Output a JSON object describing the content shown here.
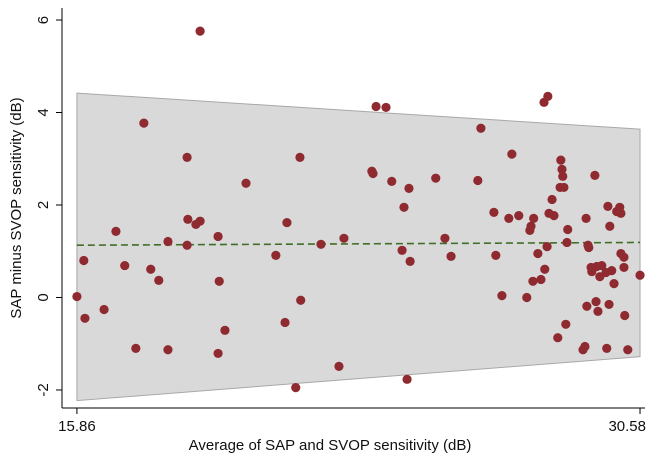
{
  "chart_data": {
    "type": "scatter",
    "xlabel": "Average of SAP and SVOP sensitivity (dB)",
    "ylabel": "SAP minus SVOP sensitivity (dB)",
    "xlim": [
      15.47,
      30.71
    ],
    "ylim": [
      -2.39,
      6.26
    ],
    "xticks": [
      15.86,
      30.58
    ],
    "yticks": [
      -2,
      0,
      2,
      4,
      6
    ],
    "color": "#8e2a30",
    "x": [
      15.86,
      16.04,
      16.07,
      16.57,
      16.88,
      17.11,
      17.4,
      17.61,
      17.79,
      18.0,
      18.24,
      18.24,
      18.74,
      18.74,
      18.76,
      18.97,
      19.08,
      19.08,
      19.55,
      19.58,
      19.55,
      19.73,
      20.28,
      21.06,
      21.3,
      21.35,
      21.58,
      21.69,
      21.71,
      22.24,
      22.71,
      22.84,
      23.57,
      23.6,
      23.68,
      23.94,
      24.09,
      24.41,
      24.36,
      24.54,
      24.57,
      24.49,
      25.24,
      25.48,
      25.64,
      26.34,
      26.42,
      26.76,
      26.81,
      26.97,
      27.15,
      27.23,
      27.41,
      27.62,
      27.7,
      27.73,
      27.78,
      27.8,
      27.91,
      27.99,
      28.09,
      28.07,
      28.17,
      28.15,
      28.2,
      28.28,
      28.33,
      28.43,
      28.49,
      28.51,
      28.54,
      28.56,
      28.59,
      28.64,
      28.69,
      28.67,
      29.14,
      29.09,
      29.17,
      29.19,
      29.22,
      29.24,
      29.3,
      29.32,
      29.4,
      29.43,
      29.45,
      29.48,
      29.53,
      29.58,
      29.69,
      29.71,
      29.74,
      29.77,
      29.79,
      29.84,
      29.9,
      29.97,
      30.05,
      30.08,
      30.08,
      30.16,
      30.16,
      30.18,
      30.26,
      30.58
    ],
    "values": [
      0.02,
      0.8,
      -0.45,
      -0.26,
      1.43,
      0.69,
      -1.1,
      3.77,
      0.61,
      0.37,
      -1.13,
      1.21,
      3.03,
      1.13,
      1.69,
      1.58,
      1.65,
      5.76,
      1.32,
      0.35,
      -1.21,
      -0.71,
      2.47,
      0.91,
      -0.54,
      1.62,
      -1.95,
      3.03,
      -0.06,
      1.15,
      -1.49,
      1.28,
      2.73,
      2.68,
      4.13,
      4.11,
      2.51,
      1.95,
      1.02,
      2.36,
      0.78,
      -1.77,
      2.58,
      1.28,
      0.89,
      2.53,
      3.66,
      1.84,
      0.91,
      0.04,
      1.71,
      3.1,
      1.77,
      0.0,
      1.45,
      1.54,
      0.35,
      1.71,
      0.95,
      0.39,
      0.61,
      4.22,
      4.35,
      1.1,
      1.82,
      2.12,
      1.77,
      -0.87,
      2.38,
      2.97,
      2.77,
      2.62,
      2.38,
      -0.58,
      1.47,
      1.19,
      -1.06,
      -1.13,
      1.71,
      -0.19,
      1.13,
      1.08,
      0.65,
      0.56,
      2.64,
      -0.09,
      0.67,
      -0.3,
      0.45,
      0.69,
      0.54,
      -1.1,
      1.97,
      -0.15,
      1.54,
      0.58,
      0.3,
      1.86,
      1.95,
      1.82,
      0.95,
      0.87,
      0.65,
      -0.39,
      -1.13,
      0.48
    ],
    "band": {
      "x": [
        15.86,
        30.58
      ],
      "upper": [
        4.42,
        3.64
      ],
      "lower": [
        -2.23,
        -1.28
      ],
      "color": "#d9d9d9"
    },
    "mean_line": {
      "x": [
        15.86,
        30.58
      ],
      "values": [
        1.13,
        1.19
      ],
      "color": "#3f6e26"
    }
  }
}
